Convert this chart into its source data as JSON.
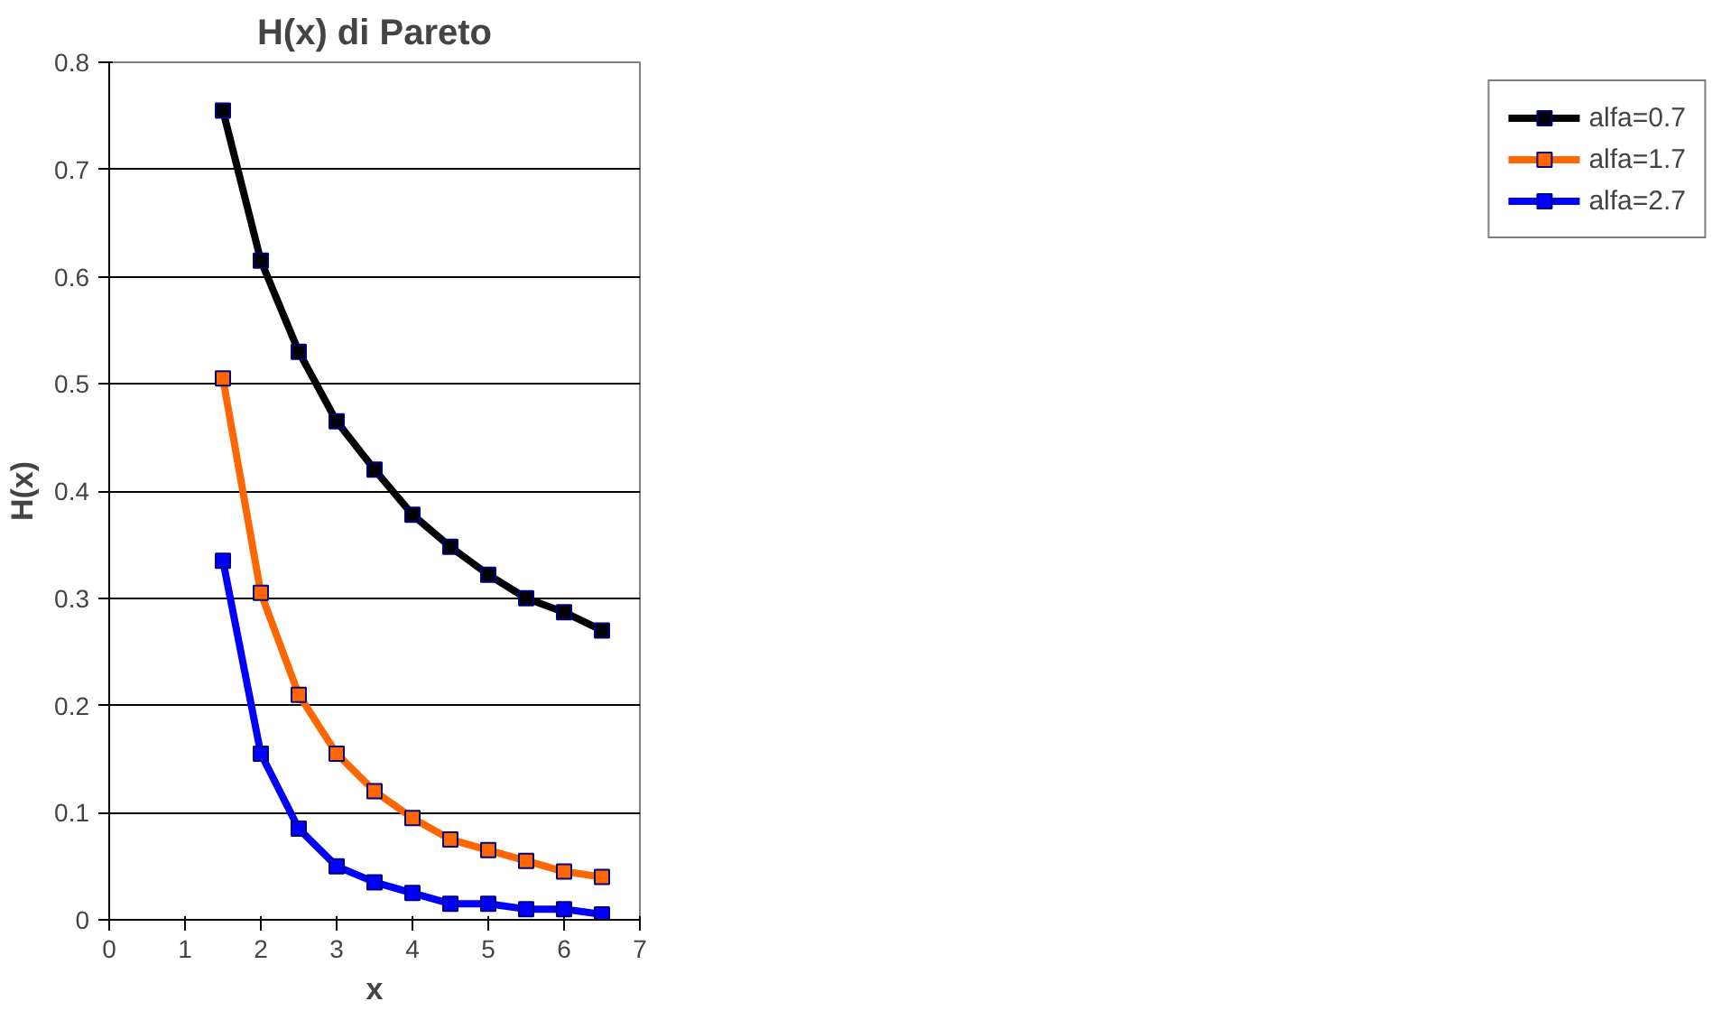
{
  "chart_data": {
    "type": "line",
    "title": "H(x) di Pareto",
    "xlabel": "x",
    "ylabel": "H(x)",
    "x": [
      1.5,
      2,
      2.5,
      3,
      3.5,
      4,
      4.5,
      5,
      5.5,
      6,
      6.5
    ],
    "series": [
      {
        "name": "alfa=0.7",
        "color": "#000000",
        "values": [
          0.755,
          0.615,
          0.53,
          0.465,
          0.42,
          0.378,
          0.348,
          0.322,
          0.3,
          0.287,
          0.27
        ]
      },
      {
        "name": "alfa=1.7",
        "color": "#ff6600",
        "values": [
          0.505,
          0.305,
          0.21,
          0.155,
          0.12,
          0.095,
          0.075,
          0.065,
          0.055,
          0.045,
          0.04
        ]
      },
      {
        "name": "alfa=2.7",
        "color": "#0000ff",
        "values": [
          0.335,
          0.155,
          0.085,
          0.05,
          0.035,
          0.025,
          0.015,
          0.015,
          0.01,
          0.01,
          0.005
        ]
      }
    ],
    "xlim": [
      0,
      7
    ],
    "xticks": [
      0,
      1,
      2,
      3,
      4,
      5,
      6,
      7
    ],
    "ylim": [
      0,
      0.8
    ],
    "yticks": [
      0,
      0.1,
      0.2,
      0.3,
      0.4,
      0.5,
      0.6,
      0.7,
      0.8
    ],
    "grid": "y",
    "legend": "right",
    "marker": "square",
    "line_style": "solid"
  }
}
